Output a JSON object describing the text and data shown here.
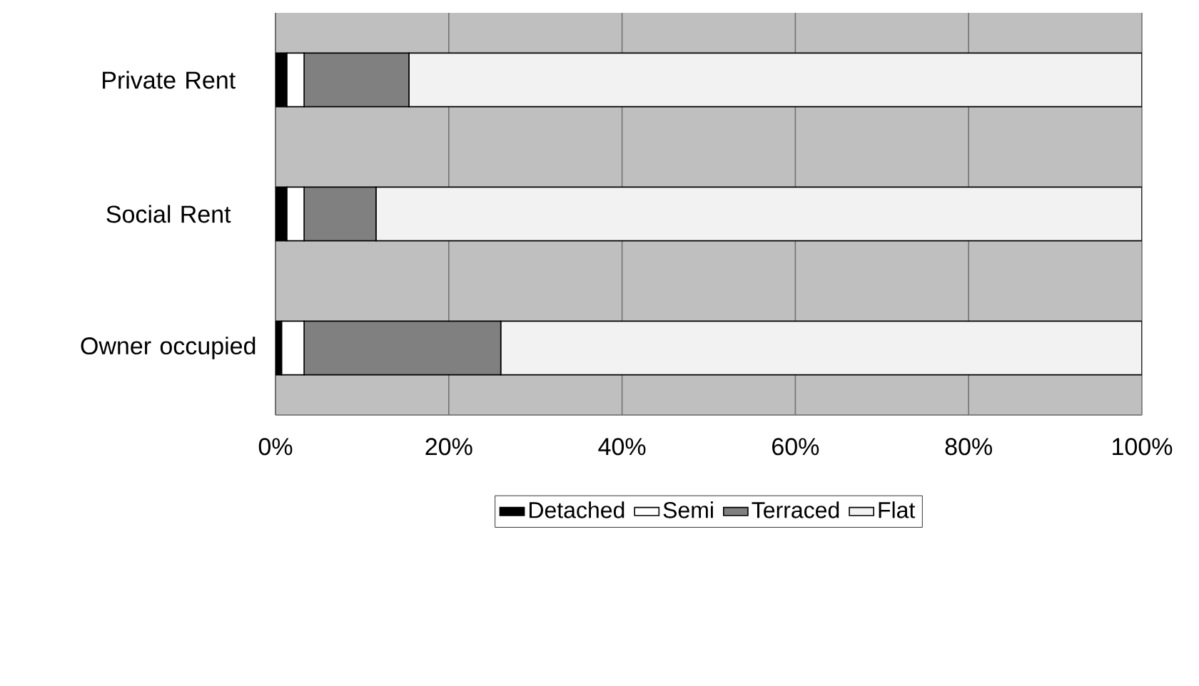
{
  "chart_data": {
    "type": "bar",
    "orientation": "horizontal",
    "stacked": true,
    "categories": [
      "Private Rent",
      "Social Rent",
      "Owner occupied"
    ],
    "series": [
      {
        "name": "Detached",
        "color": "#000000",
        "values": [
          1.3,
          1.3,
          0.7
        ]
      },
      {
        "name": "Semi",
        "color": "#ffffff",
        "values": [
          2.0,
          2.0,
          2.6
        ]
      },
      {
        "name": "Terraced",
        "color": "#808080",
        "values": [
          12.1,
          8.3,
          22.7
        ]
      },
      {
        "name": "Flat",
        "color": "#f2f2f2",
        "values": [
          84.6,
          88.4,
          74.0
        ]
      }
    ],
    "xlim": [
      0,
      100
    ],
    "xticks": [
      {
        "value": 0,
        "label": "0%"
      },
      {
        "value": 20,
        "label": "20%"
      },
      {
        "value": 40,
        "label": "40%"
      },
      {
        "value": 60,
        "label": "60%"
      },
      {
        "value": 80,
        "label": "80%"
      },
      {
        "value": 100,
        "label": "100%"
      }
    ],
    "grid": "x",
    "legend": "bottom"
  }
}
